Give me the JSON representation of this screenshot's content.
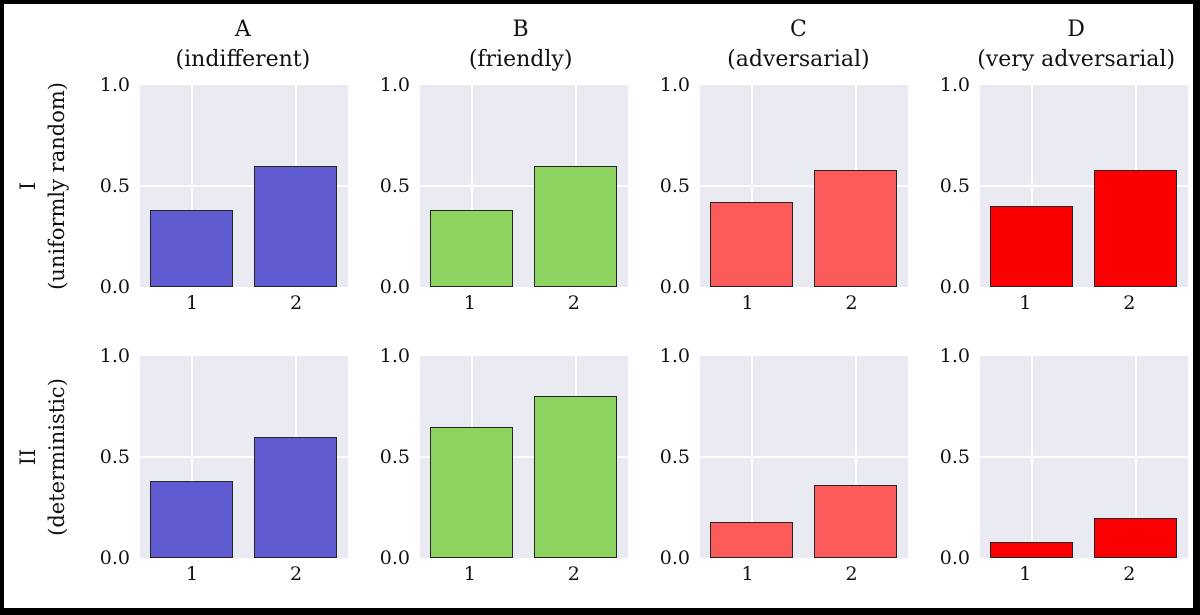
{
  "figure": {
    "frame_color": "#000000",
    "background": "#ffffff",
    "plot_background": "#eaeaf2",
    "grid_color": "#ffffff",
    "bar_edge_color": "#262626",
    "text_color": "#111111"
  },
  "chart_data": {
    "type": "bar",
    "layout": {
      "grid_rows": 2,
      "grid_cols": 4,
      "description": "2x4 grid of bar subplots, shared y axis 0..1, grid on, seaborn-style light background"
    },
    "categories": [
      "1",
      "2"
    ],
    "ylim": [
      0,
      1
    ],
    "yticks": [
      0.0,
      0.5,
      1.0
    ],
    "ytick_labels_top_to_bottom": [
      "1.0",
      "0.5",
      "0.0"
    ],
    "grid": true,
    "columns": [
      {
        "key": "A",
        "title": "A",
        "subtitle": "(indifferent)",
        "color": "#5e5bd0"
      },
      {
        "key": "B",
        "title": "B",
        "subtitle": "(friendly)",
        "color": "#8dd35f"
      },
      {
        "key": "C",
        "title": "C",
        "subtitle": "(adversarial)",
        "color": "#fb5b5b"
      },
      {
        "key": "D",
        "title": "D",
        "subtitle": "(very adversarial)",
        "color": "#fa0000"
      }
    ],
    "rows": [
      {
        "key": "I",
        "label": "I",
        "sublabel": "(uniformly random)"
      },
      {
        "key": "II",
        "label": "II",
        "sublabel": "(deterministic)"
      }
    ],
    "values": {
      "I": {
        "A": [
          0.38,
          0.6
        ],
        "B": [
          0.38,
          0.6
        ],
        "C": [
          0.42,
          0.58
        ],
        "D": [
          0.4,
          0.58
        ]
      },
      "II": {
        "A": [
          0.38,
          0.6
        ],
        "B": [
          0.65,
          0.8
        ],
        "C": [
          0.18,
          0.36
        ],
        "D": [
          0.08,
          0.2
        ]
      }
    }
  }
}
